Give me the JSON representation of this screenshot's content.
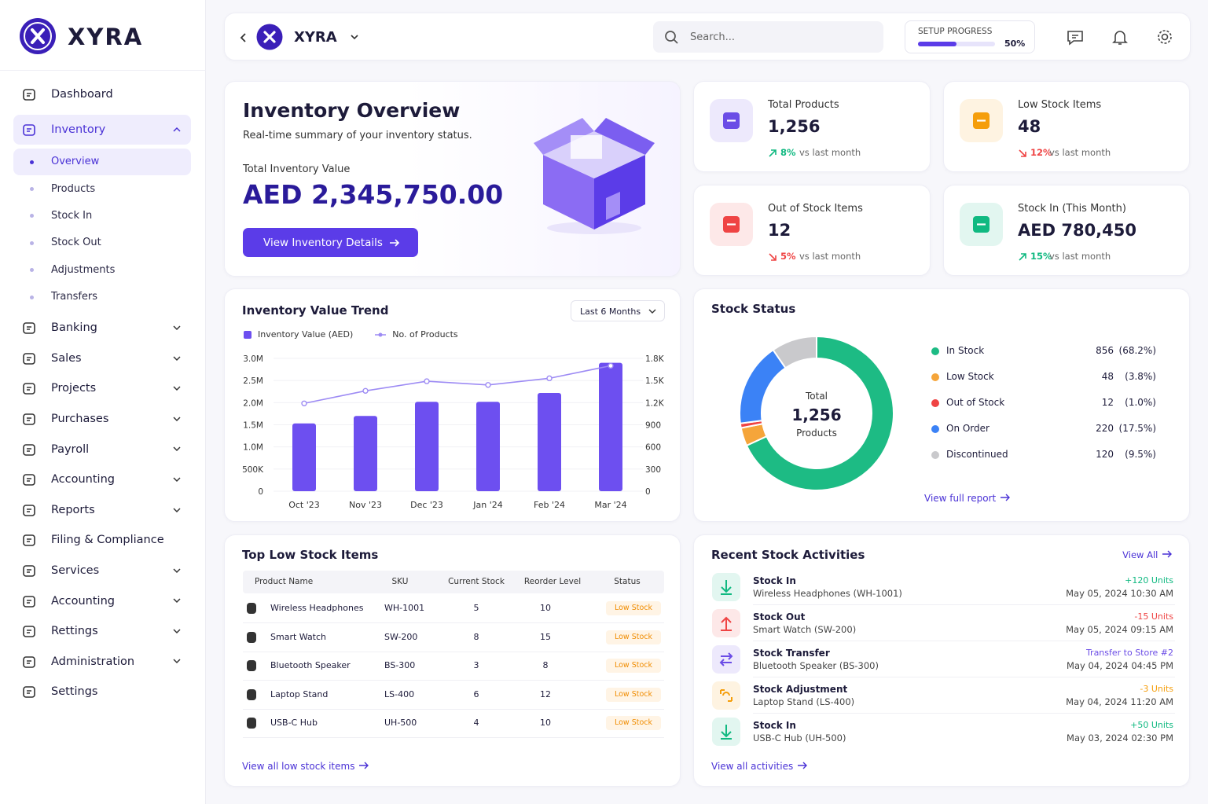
{
  "sidebar": {
    "brand": "XYRA",
    "nav": [
      {
        "label": "Dashboard"
      },
      {
        "label": "Inventory",
        "expandable": true,
        "open": true,
        "active_child": 0,
        "children": [
          "Overview",
          "Products",
          "Stock In",
          "Stock Out",
          "Adjustments",
          "Transfers"
        ]
      },
      {
        "label": "Banking",
        "expandable": true
      },
      {
        "label": "Sales",
        "expandable": true
      },
      {
        "label": "Projects",
        "expandable": true
      },
      {
        "label": "Purchases",
        "expandable": true
      },
      {
        "label": "Payroll",
        "expandable": true
      },
      {
        "label": "Accounting",
        "expandable": true
      },
      {
        "label": "Reports",
        "expandable": true
      },
      {
        "label": "Filing & Compliance"
      },
      {
        "label": "Services",
        "expandable": true
      },
      {
        "label": "Accounting",
        "expandable": true
      },
      {
        "label": "Rettings",
        "expandable": true
      },
      {
        "label": "Administration",
        "expandable": true
      },
      {
        "label": "Settings"
      }
    ]
  },
  "header": {
    "brand": "XYRA",
    "search_placeholder": "Search...",
    "setup_label": "SETUP PROGRESS",
    "setup_progress": 50,
    "setup_progress_label": "50%"
  },
  "overview": {
    "title": "Inventory Overview",
    "subtitle": "Real-time summary of your inventory status.",
    "value_label": "Total Inventory Value",
    "value": "AED 2,345,750.00",
    "button": "View Inventory Details"
  },
  "kpis": [
    {
      "label": "Total Products",
      "value": "1,256",
      "change": "8%",
      "note": "vs last month",
      "dir": "up",
      "color": "#6b4de6"
    },
    {
      "label": "Low Stock Items",
      "value": "48",
      "change": "12%",
      "note": "vs last month",
      "dir": "down",
      "color": "#f59e0b"
    },
    {
      "label": "Out of Stock Items",
      "value": "12",
      "change": "5%",
      "note": "vs last month",
      "dir": "down",
      "color": "#ef4444"
    },
    {
      "label": "Stock In (This Month)",
      "value": "AED 780,450",
      "change": "15%",
      "note": "vs last month",
      "dir": "up",
      "color": "#10b981"
    }
  ],
  "chart_data": [
    {
      "type": "bar-line",
      "title": "Inventory Value Trend",
      "filter": "Last 6 Months",
      "categories": [
        "Oct '23",
        "Nov '23",
        "Dec '23",
        "Jan '24",
        "Feb '24",
        "Mar '24"
      ],
      "series": [
        {
          "name": "Inventory Value (AED)",
          "type": "bar",
          "color": "#6d4ff0",
          "values": [
            1530000,
            1700000,
            2020000,
            2020000,
            2220000,
            2900000
          ]
        },
        {
          "name": "No. of Products",
          "type": "line",
          "axis": "y2",
          "color": "#9d8bf4",
          "values": [
            1190,
            1360,
            1490,
            1440,
            1530,
            1700
          ]
        }
      ],
      "ylim": [
        0,
        3000000
      ],
      "yticks": [
        0,
        {
          "value": 500000,
          "label": "500K"
        },
        {
          "value": 1000000,
          "label": "1.0M"
        },
        {
          "value": 1500000,
          "label": "1.5M"
        },
        {
          "value": 2000000,
          "label": "2.0M"
        },
        {
          "value": 2500000,
          "label": "2.5M"
        },
        {
          "value": 3000000,
          "label": "3.0M"
        }
      ],
      "y2lim": [
        0,
        1800
      ],
      "y2ticks": [
        0,
        300,
        600,
        900,
        {
          "value": 1200,
          "label": "1.2K"
        },
        {
          "value": 1500,
          "label": "1.5K"
        },
        {
          "value": 1800,
          "label": "1.8K"
        }
      ]
    },
    {
      "type": "donut",
      "title": "Stock Status",
      "center_label": "Total",
      "center_value": "1,256",
      "center_sub": "Products",
      "categories": [
        "In Stock",
        "Low Stock",
        "Out of Stock",
        "On Order",
        "Discontinued"
      ],
      "values": [
        856,
        48,
        12,
        220,
        120
      ],
      "percents": [
        68.2,
        3.8,
        1.0,
        17.5,
        9.5
      ],
      "percent_labels": [
        "(68.2%)",
        "(3.8%)",
        "(1.0%)",
        "(17.5%)",
        "(9.5%)"
      ],
      "colors": [
        "#1dbb84",
        "#f5a53a",
        "#ef4444",
        "#3b82f6",
        "#c9c9cc"
      ],
      "link": "View full report"
    }
  ],
  "low_stock": {
    "title": "Top Low Stock Items",
    "columns": [
      "Product Name",
      "SKU",
      "Current Stock",
      "Reorder Level",
      "Status"
    ],
    "rows": [
      [
        "Wireless Headphones",
        "WH-1001",
        5,
        10,
        "Low Stock"
      ],
      [
        "Smart Watch",
        "SW-200",
        8,
        15,
        "Low Stock"
      ],
      [
        "Bluetooth Speaker",
        "BS-300",
        3,
        8,
        "Low Stock"
      ],
      [
        "Laptop Stand",
        "LS-400",
        6,
        12,
        "Low Stock"
      ],
      [
        "USB-C Hub",
        "UH-500",
        4,
        10,
        "Low Stock"
      ]
    ],
    "link": "View all low stock items"
  },
  "activities": {
    "title": "Recent Stock Activities",
    "view_all": "View All",
    "link": "View all activities",
    "items": [
      {
        "kind": "in",
        "title": "Stock In",
        "detail": "Wireless Headphones (WH-1001)",
        "qty": "+120 Units",
        "date": "May 05, 2024 10:30 AM"
      },
      {
        "kind": "out",
        "title": "Stock Out",
        "detail": "Smart Watch (SW-200)",
        "qty": "-15 Units",
        "date": "May 05, 2024 09:15 AM"
      },
      {
        "kind": "transfer",
        "title": "Stock Transfer",
        "detail": "Bluetooth Speaker (BS-300)",
        "qty": "Transfer to Store #2",
        "date": "May 04, 2024 04:45 PM"
      },
      {
        "kind": "adjust",
        "title": "Stock Adjustment",
        "detail": "Laptop Stand (LS-400)",
        "qty": "-3 Units",
        "date": "May 04, 2024 11:20 AM"
      },
      {
        "kind": "in",
        "title": "Stock In",
        "detail": "USB-C Hub (UH-500)",
        "qty": "+50 Units",
        "date": "May 03, 2024 02:30 PM"
      }
    ]
  }
}
